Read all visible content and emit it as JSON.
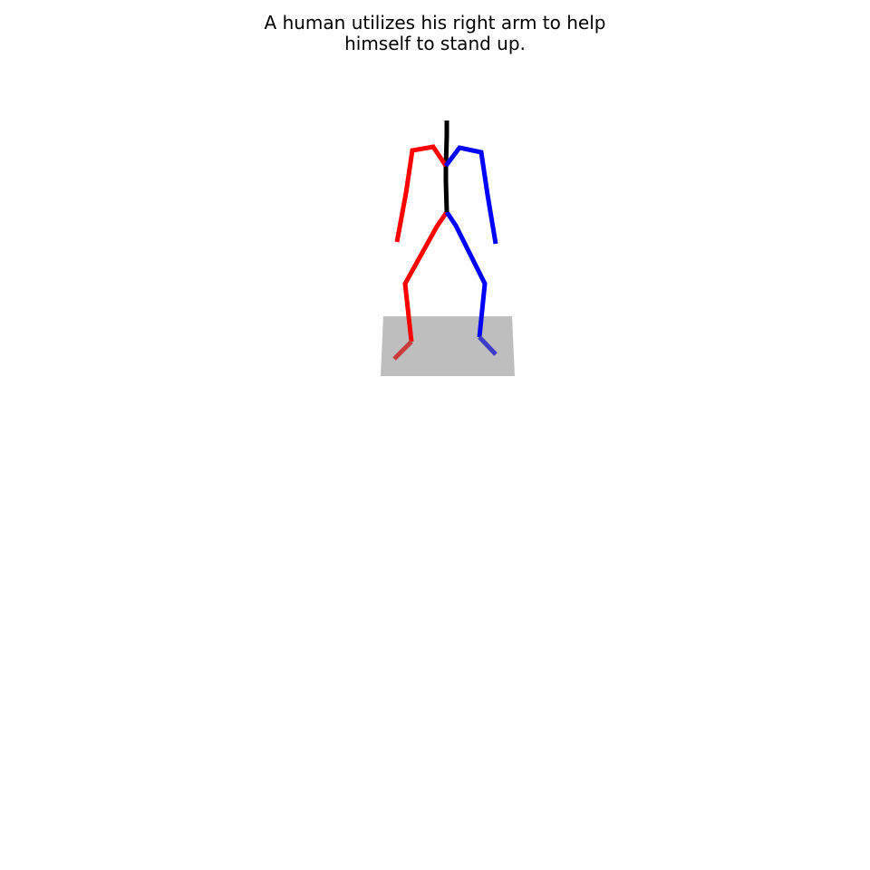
{
  "caption": {
    "line1": "A human utilizes his right arm to help",
    "line2": "himself to stand up."
  },
  "colors": {
    "background": "#fefefe",
    "floor": "#bebebe",
    "right_side": "#ff0000",
    "left_side": "#0000ff",
    "spine": "#000000",
    "right_foot": "#c83c3c",
    "left_foot": "#3c3cc8"
  }
}
